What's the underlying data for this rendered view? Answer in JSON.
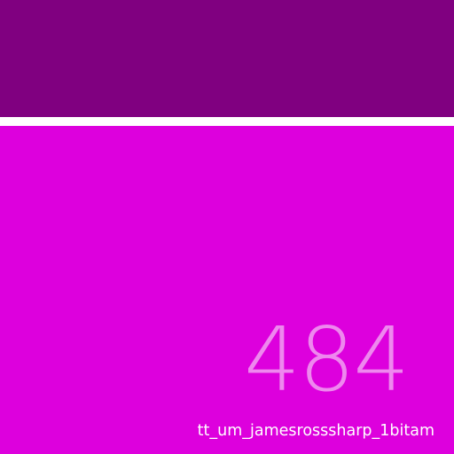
{
  "tile": {
    "number": "484",
    "caption": "tt_um_jamesrosssharp_1bitam"
  },
  "colors": {
    "top_band": "#800080",
    "divider": "#ffffff",
    "main_panel": "#dd00dd",
    "number_text": "#ee88ee",
    "caption_text": "#ffffff"
  }
}
